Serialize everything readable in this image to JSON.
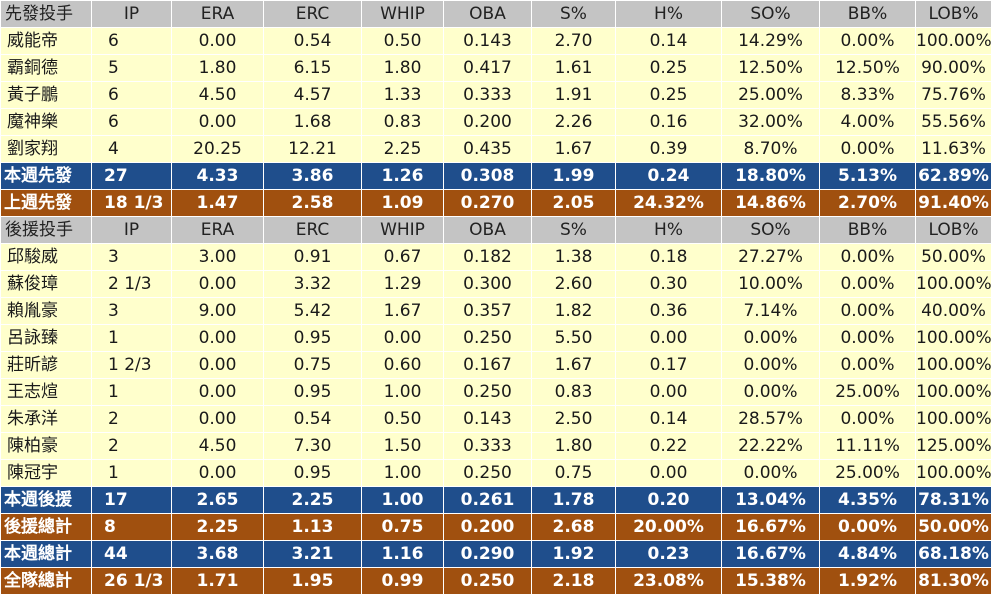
{
  "columns": [
    "IP",
    "ERA",
    "ERC",
    "WHIP",
    "OBA",
    "S%",
    "H%",
    "SO%",
    "BB%",
    "LOB%"
  ],
  "sections": [
    {
      "header": "先發投手",
      "players": [
        {
          "name": "威能帝",
          "values": [
            "6",
            "0.00",
            "0.54",
            "0.50",
            "0.143",
            "2.70",
            "0.14",
            "14.29%",
            "0.00%",
            "100.00%"
          ]
        },
        {
          "name": "霸銅德",
          "values": [
            "5",
            "1.80",
            "6.15",
            "1.80",
            "0.417",
            "1.61",
            "0.25",
            "12.50%",
            "12.50%",
            "90.00%"
          ]
        },
        {
          "name": "黃子鵬",
          "values": [
            "6",
            "4.50",
            "4.57",
            "1.33",
            "0.333",
            "1.91",
            "0.25",
            "25.00%",
            "8.33%",
            "75.76%"
          ]
        },
        {
          "name": "魔神樂",
          "values": [
            "6",
            "0.00",
            "1.68",
            "0.83",
            "0.200",
            "2.26",
            "0.16",
            "32.00%",
            "4.00%",
            "55.56%"
          ]
        },
        {
          "name": "劉家翔",
          "values": [
            "4",
            "20.25",
            "12.21",
            "2.25",
            "0.435",
            "1.67",
            "0.39",
            "8.70%",
            "0.00%",
            "11.63%"
          ]
        }
      ],
      "summaries": [
        {
          "style": "blue",
          "name": "本週先發",
          "values": [
            "27",
            "4.33",
            "3.86",
            "1.26",
            "0.308",
            "1.99",
            "0.24",
            "18.80%",
            "5.13%",
            "62.89%"
          ]
        },
        {
          "style": "orange",
          "name": "上週先發",
          "values": [
            "18 1/3",
            "1.47",
            "2.58",
            "1.09",
            "0.270",
            "2.05",
            "24.32%",
            "14.86%",
            "2.70%",
            "91.40%"
          ]
        }
      ]
    },
    {
      "header": "後援投手",
      "players": [
        {
          "name": "邱駿威",
          "values": [
            "3",
            "3.00",
            "0.91",
            "0.67",
            "0.182",
            "1.38",
            "0.18",
            "27.27%",
            "0.00%",
            "50.00%"
          ]
        },
        {
          "name": "蘇俊璋",
          "values": [
            "2 1/3",
            "0.00",
            "3.32",
            "1.29",
            "0.300",
            "2.60",
            "0.30",
            "10.00%",
            "0.00%",
            "100.00%"
          ]
        },
        {
          "name": "賴胤豪",
          "values": [
            "3",
            "9.00",
            "5.42",
            "1.67",
            "0.357",
            "1.82",
            "0.36",
            "7.14%",
            "0.00%",
            "40.00%"
          ]
        },
        {
          "name": "呂詠臻",
          "values": [
            "1",
            "0.00",
            "0.95",
            "0.00",
            "0.250",
            "5.50",
            "0.00",
            "0.00%",
            "0.00%",
            "100.00%"
          ]
        },
        {
          "name": "莊昕諺",
          "values": [
            "1 2/3",
            "0.00",
            "0.75",
            "0.60",
            "0.167",
            "1.67",
            "0.17",
            "0.00%",
            "0.00%",
            "100.00%"
          ]
        },
        {
          "name": "王志煊",
          "values": [
            "1",
            "0.00",
            "0.95",
            "1.00",
            "0.250",
            "0.83",
            "0.00",
            "0.00%",
            "25.00%",
            "100.00%"
          ]
        },
        {
          "name": "朱承洋",
          "values": [
            "2",
            "0.00",
            "0.54",
            "0.50",
            "0.143",
            "2.50",
            "0.14",
            "28.57%",
            "0.00%",
            "100.00%"
          ]
        },
        {
          "name": "陳柏豪",
          "values": [
            "2",
            "4.50",
            "7.30",
            "1.50",
            "0.333",
            "1.80",
            "0.22",
            "22.22%",
            "11.11%",
            "125.00%"
          ]
        },
        {
          "name": "陳冠宇",
          "values": [
            "1",
            "0.00",
            "0.95",
            "1.00",
            "0.250",
            "0.75",
            "0.00",
            "0.00%",
            "25.00%",
            "100.00%"
          ]
        }
      ],
      "summaries": [
        {
          "style": "blue",
          "name": "本週後援",
          "values": [
            "17",
            "2.65",
            "2.25",
            "1.00",
            "0.261",
            "1.78",
            "0.20",
            "13.04%",
            "4.35%",
            "78.31%"
          ]
        },
        {
          "style": "orange",
          "name": "後援總計",
          "values": [
            "8",
            "2.25",
            "1.13",
            "0.75",
            "0.200",
            "2.68",
            "20.00%",
            "16.67%",
            "0.00%",
            "50.00%"
          ]
        },
        {
          "style": "blue",
          "name": "本週總計",
          "values": [
            "44",
            "3.68",
            "3.21",
            "1.16",
            "0.290",
            "1.92",
            "0.23",
            "16.67%",
            "4.84%",
            "68.18%"
          ]
        },
        {
          "style": "orange",
          "name": "全隊總計",
          "values": [
            "26 1/3",
            "1.71",
            "1.95",
            "0.99",
            "0.250",
            "2.18",
            "23.08%",
            "15.38%",
            "1.92%",
            "81.30%"
          ]
        }
      ]
    }
  ]
}
